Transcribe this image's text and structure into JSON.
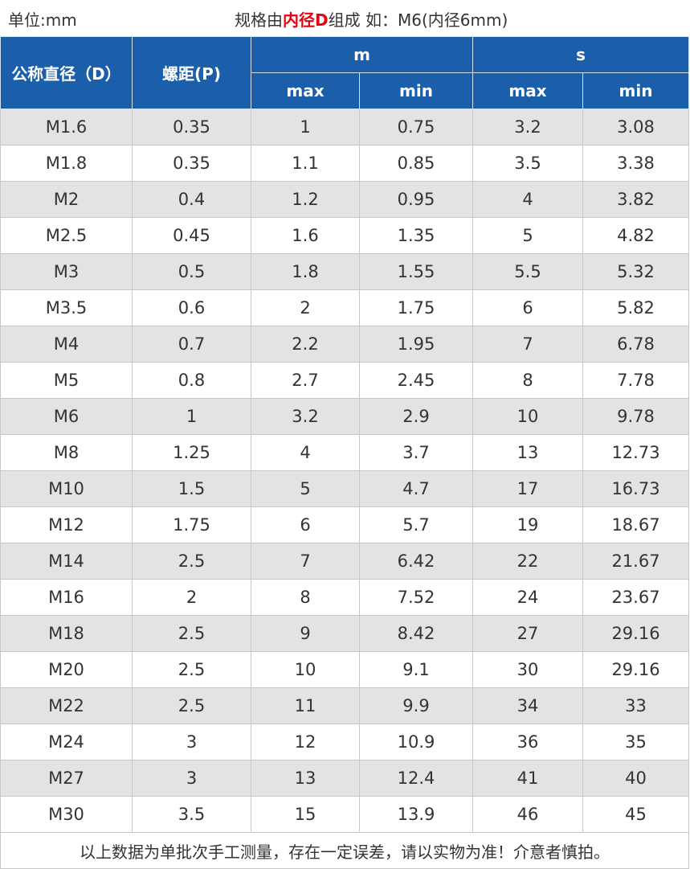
{
  "header": {
    "unit_label": "单位:mm",
    "spec_prefix": "规格由",
    "spec_highlight": "内径D",
    "spec_suffix": "组成 如：M6(内径6mm)"
  },
  "table": {
    "col_headers": {
      "diameter": "公称直径（D）",
      "pitch": "螺距(P)",
      "m_group": "m",
      "s_group": "s",
      "m_max": "max",
      "m_min": "min",
      "s_max": "max",
      "s_min": "min"
    },
    "rows": [
      [
        "M1.6",
        "0.35",
        "1",
        "0.75",
        "3.2",
        "3.08"
      ],
      [
        "M1.8",
        "0.35",
        "1.1",
        "0.85",
        "3.5",
        "3.38"
      ],
      [
        "M2",
        "0.4",
        "1.2",
        "0.95",
        "4",
        "3.82"
      ],
      [
        "M2.5",
        "0.45",
        "1.6",
        "1.35",
        "5",
        "4.82"
      ],
      [
        "M3",
        "0.5",
        "1.8",
        "1.55",
        "5.5",
        "5.32"
      ],
      [
        "M3.5",
        "0.6",
        "2",
        "1.75",
        "6",
        "5.82"
      ],
      [
        "M4",
        "0.7",
        "2.2",
        "1.95",
        "7",
        "6.78"
      ],
      [
        "M5",
        "0.8",
        "2.7",
        "2.45",
        "8",
        "7.78"
      ],
      [
        "M6",
        "1",
        "3.2",
        "2.9",
        "10",
        "9.78"
      ],
      [
        "M8",
        "1.25",
        "4",
        "3.7",
        "13",
        "12.73"
      ],
      [
        "M10",
        "1.5",
        "5",
        "4.7",
        "17",
        "16.73"
      ],
      [
        "M12",
        "1.75",
        "6",
        "5.7",
        "19",
        "18.67"
      ],
      [
        "M14",
        "2.5",
        "7",
        "6.42",
        "22",
        "21.67"
      ],
      [
        "M16",
        "2",
        "8",
        "7.52",
        "24",
        "23.67"
      ],
      [
        "M18",
        "2.5",
        "9",
        "8.42",
        "27",
        "29.16"
      ],
      [
        "M20",
        "2.5",
        "10",
        "9.1",
        "30",
        "29.16"
      ],
      [
        "M22",
        "2.5",
        "11",
        "9.9",
        "34",
        "33"
      ],
      [
        "M24",
        "3",
        "12",
        "10.9",
        "36",
        "35"
      ],
      [
        "M27",
        "3",
        "13",
        "12.4",
        "41",
        "40"
      ],
      [
        "M30",
        "3.5",
        "15",
        "13.9",
        "46",
        "45"
      ]
    ],
    "footer_note": "以上数据为单批次手工测量，存在一定误差，请以实物为准！介意者慎拍。"
  },
  "colors": {
    "header_bg": "#1b5ea9",
    "highlight_text": "#e60012",
    "stripe": "#e3e3e3"
  }
}
